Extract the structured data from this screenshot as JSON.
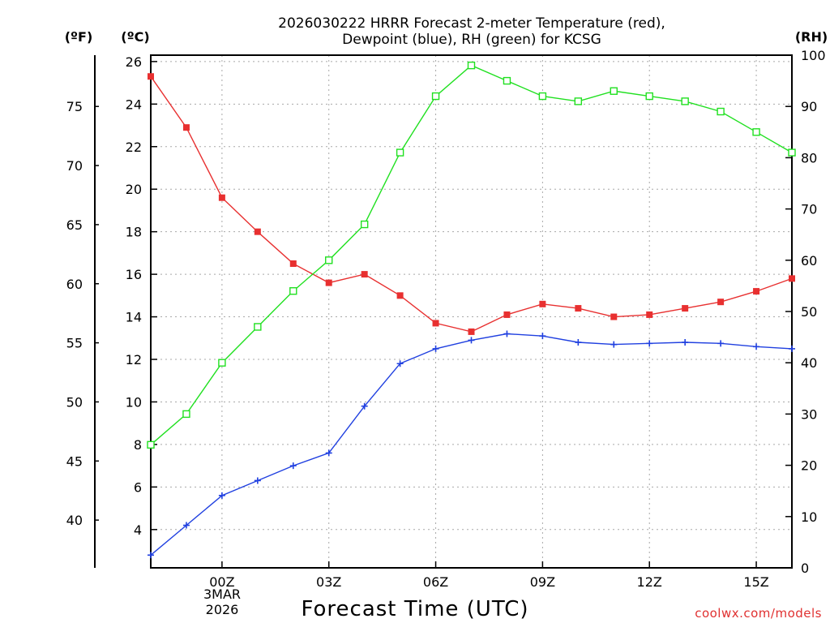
{
  "chart_data": {
    "type": "line",
    "title": [
      "2026030222 HRRR Forecast 2-meter Temperature (red),",
      "Dewpoint (blue), RH (green) for KCSG"
    ],
    "xlabel": "Forecast Time (UTC)",
    "credit": "coolwx.com/models",
    "units": {
      "fahrenheit": "(ºF)",
      "celsius": "(ºC)",
      "rh": "(RH)"
    },
    "x_hours": [
      -2,
      -1,
      0,
      1,
      2,
      3,
      4,
      5,
      6,
      7,
      8,
      9,
      10,
      11,
      12,
      13,
      14,
      15,
      16
    ],
    "x_ticks": [
      {
        "hour": 0,
        "label": "00Z"
      },
      {
        "hour": 3,
        "label": "03Z"
      },
      {
        "hour": 6,
        "label": "06Z"
      },
      {
        "hour": 9,
        "label": "09Z"
      },
      {
        "hour": 12,
        "label": "12Z"
      },
      {
        "hour": 15,
        "label": "15Z"
      }
    ],
    "date_label": [
      "3MAR",
      "2026"
    ],
    "grid": true,
    "y_left_celsius": {
      "range": [
        2.2,
        26.3
      ],
      "ticks": [
        4,
        6,
        8,
        10,
        12,
        14,
        16,
        18,
        20,
        22,
        24,
        26
      ]
    },
    "y_left_fahrenheit": {
      "ticks": [
        40,
        45,
        50,
        55,
        60,
        65,
        70,
        75
      ]
    },
    "y_right_rh": {
      "range": [
        0,
        100
      ],
      "ticks": [
        0,
        10,
        20,
        30,
        40,
        50,
        60,
        70,
        80,
        90,
        100
      ]
    },
    "series": [
      {
        "name": "Temperature",
        "axis": "celsius",
        "color": "#e83030",
        "marker": "filled-square",
        "values": [
          25.3,
          22.9,
          19.6,
          18.0,
          16.5,
          15.6,
          16.0,
          15.0,
          13.7,
          13.3,
          14.1,
          14.6,
          14.4,
          14.0,
          14.1,
          14.4,
          14.7,
          15.2,
          15.8
        ]
      },
      {
        "name": "Dewpoint",
        "axis": "celsius",
        "color": "#2040e0",
        "marker": "plus",
        "values": [
          2.8,
          4.2,
          5.6,
          6.3,
          7.0,
          7.6,
          9.8,
          11.8,
          12.5,
          12.9,
          13.2,
          13.1,
          12.8,
          12.7,
          12.75,
          12.8,
          12.75,
          12.6,
          12.5
        ]
      },
      {
        "name": "RH",
        "axis": "rh",
        "color": "#20e020",
        "marker": "open-square",
        "values": [
          24,
          30,
          40,
          47,
          54,
          60,
          67,
          81,
          92,
          98,
          95,
          92,
          91,
          93,
          92,
          91,
          89,
          85,
          81
        ]
      }
    ]
  }
}
